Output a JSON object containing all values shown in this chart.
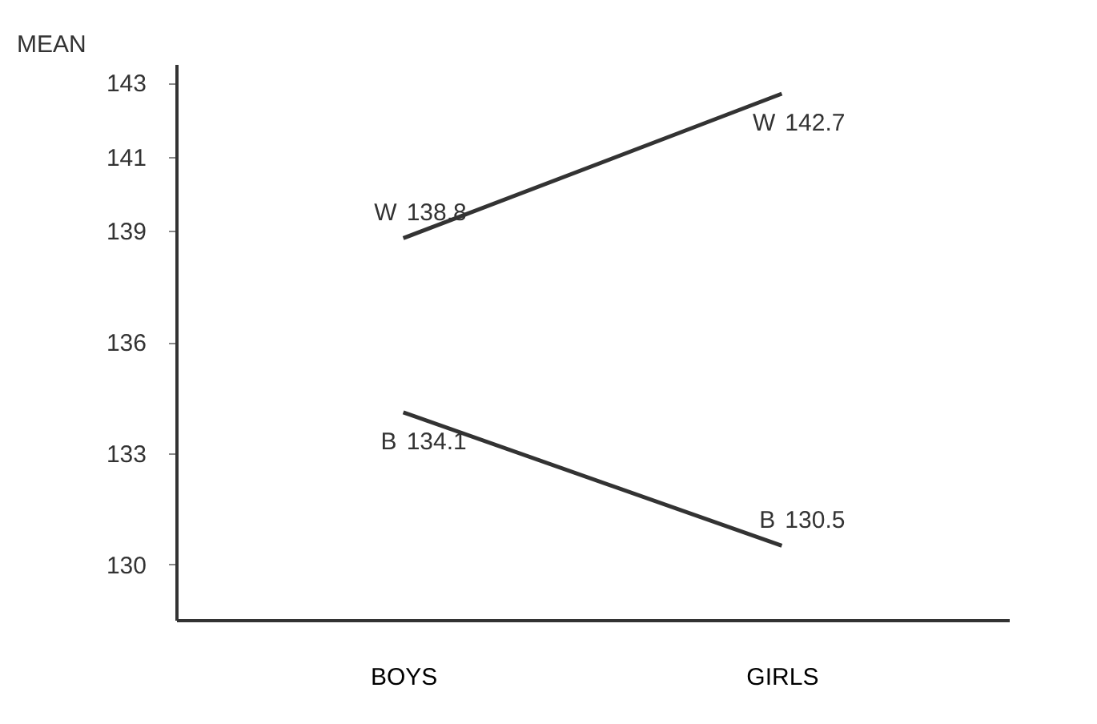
{
  "chart_data": {
    "type": "line",
    "ylabel": "MEAN",
    "categories": [
      "BOYS",
      "GIRLS"
    ],
    "series": [
      {
        "name": "W",
        "color": "#333333",
        "values": [
          138.8,
          142.7
        ]
      },
      {
        "name": "B",
        "color": "#333333",
        "values": [
          134.1,
          130.5
        ]
      }
    ],
    "ylim": [
      128.5,
      143.5
    ],
    "yticks": [
      130,
      133,
      136,
      139,
      141,
      143
    ],
    "grid": false,
    "legend": false,
    "marker": "none",
    "line_style": "solid",
    "data_labels": true
  }
}
